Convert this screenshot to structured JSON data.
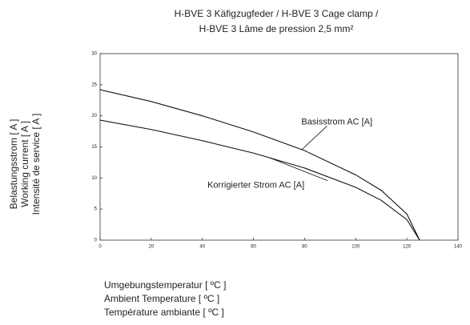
{
  "chart_data": {
    "type": "line",
    "title": [
      "H-BVE 3 Käfigzugfeder / H-BVE 3 Cage clamp /",
      "H-BVE 3 Lâme de pression 2,5 mm²"
    ],
    "y_label": [
      "Belastungsstrom [ A ]",
      "Working current [ A ]",
      "Intensité de service [ A ]"
    ],
    "x_label": [
      "Umgebungstemperatur [ ºC ]",
      "Ambient Temperature [ ºC ]",
      "Température ambiante [ ºC ]"
    ],
    "x": [
      0,
      20,
      40,
      60,
      80,
      100,
      110,
      120,
      125
    ],
    "series": [
      {
        "name": "Basisstrom AC [A]",
        "color": "#111111",
        "values": [
          24.2,
          22.3,
          20,
          17.4,
          14.4,
          10.5,
          8,
          4.2,
          0
        ]
      },
      {
        "name": "Korrigierter Strom AC [A]",
        "color": "#111111",
        "values": [
          19.3,
          17.8,
          16,
          14,
          11.6,
          8.5,
          6.4,
          3.3,
          0
        ]
      }
    ],
    "xlim": [
      0,
      140
    ],
    "xticks": [
      0,
      20,
      40,
      60,
      80,
      100,
      120,
      140
    ],
    "ylim": [
      0,
      30
    ],
    "yticks": [
      0,
      5,
      10,
      15,
      20,
      25,
      30
    ],
    "grid": false
  }
}
